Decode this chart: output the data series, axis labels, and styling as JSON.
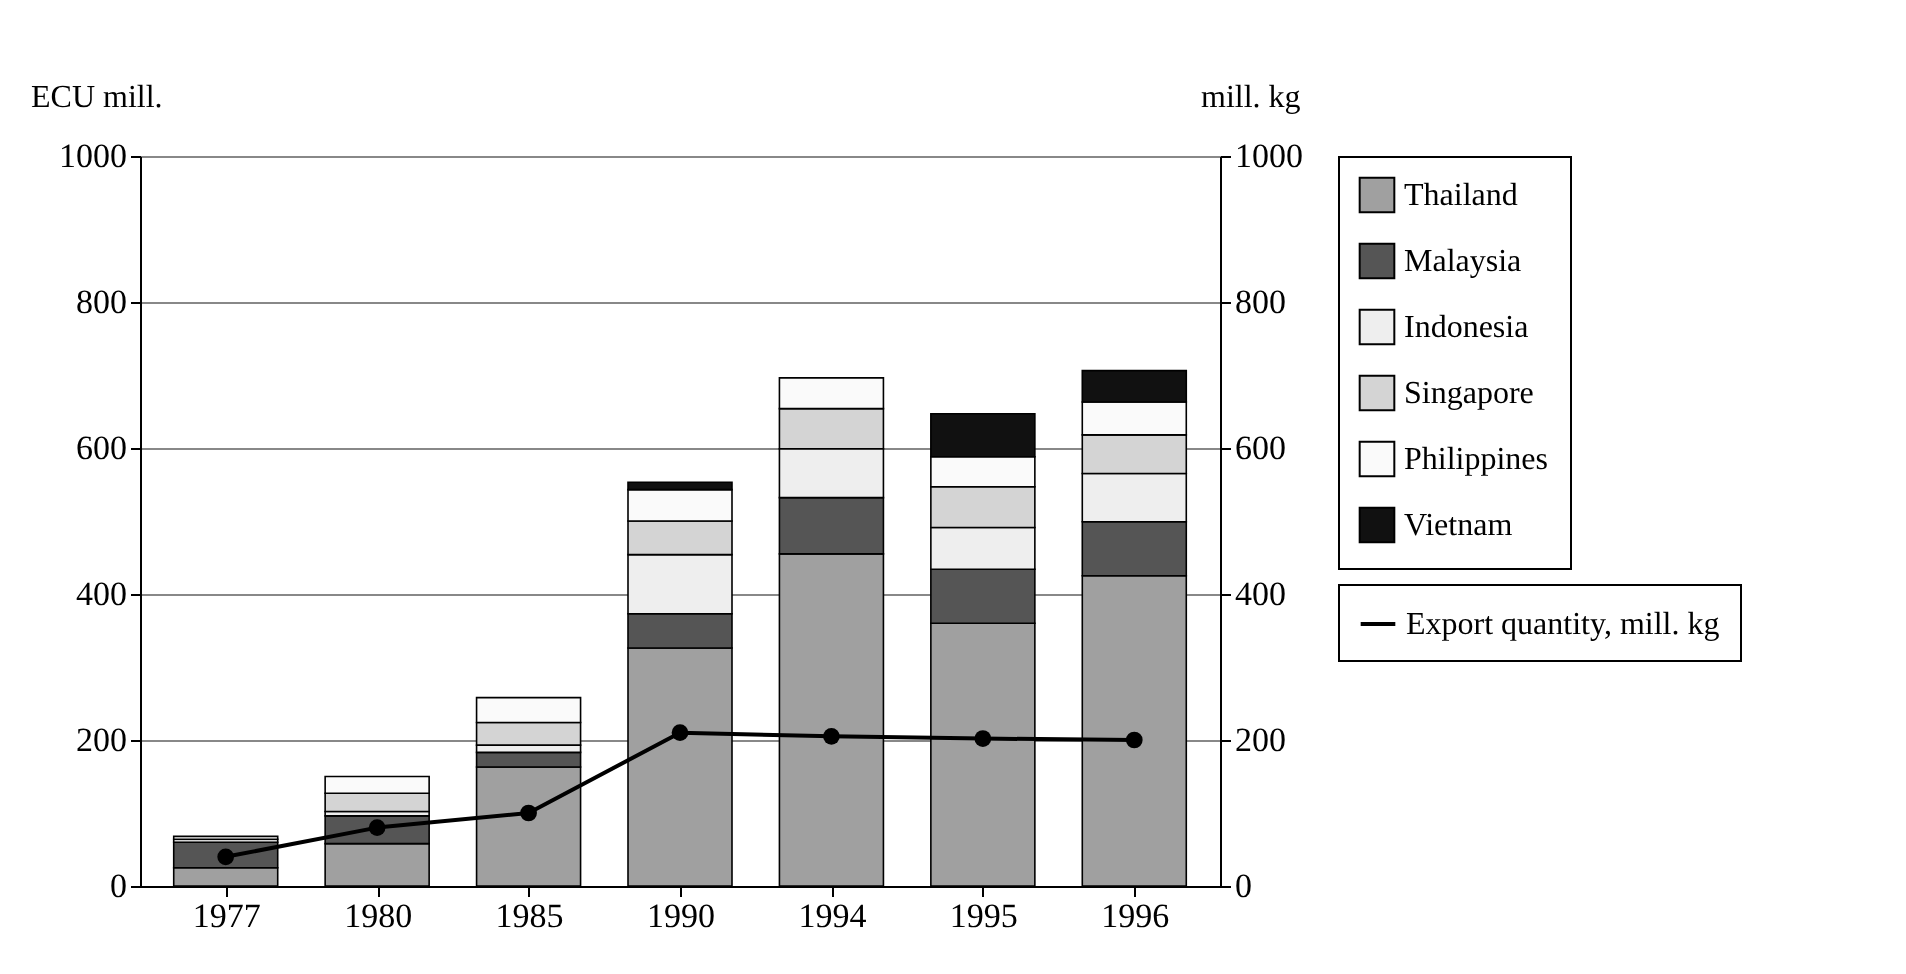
{
  "chart_data": {
    "type": "bar",
    "stacked": true,
    "categories": [
      "1977",
      "1980",
      "1985",
      "1990",
      "1994",
      "1995",
      "1996"
    ],
    "ylabel": "ECU mill.",
    "y2label": "mill. kg",
    "ylim": [
      0,
      1000
    ],
    "yticks": [
      0,
      200,
      400,
      600,
      800,
      1000
    ],
    "y2lim": [
      0,
      1000
    ],
    "y2ticks": [
      0,
      200,
      400,
      600,
      800,
      1000
    ],
    "grid": "y",
    "legend": "right",
    "series": [
      {
        "name": "Thailand",
        "color": "#a0a0a0",
        "values": [
          25,
          58,
          163,
          326,
          455,
          360,
          425
        ]
      },
      {
        "name": "Malaysia",
        "color": "#555555",
        "values": [
          35,
          38,
          20,
          47,
          77,
          74,
          74
        ]
      },
      {
        "name": "Indonesia",
        "color": "#eeeeee",
        "values": [
          null,
          6,
          10,
          81,
          67,
          57,
          66
        ]
      },
      {
        "name": "Singapore",
        "color": "#d4d4d4",
        "values": [
          4,
          25,
          31,
          46,
          55,
          56,
          53
        ]
      },
      {
        "name": "Philippines",
        "color": "#fafafa",
        "values": [
          4,
          23,
          34,
          43,
          42,
          41,
          45
        ]
      },
      {
        "name": "Vietnam",
        "color": "#111111",
        "values": [
          null,
          null,
          null,
          10,
          null,
          59,
          43
        ]
      },
      {
        "name": "Export quantity, mill. kg",
        "type": "line",
        "axis": "y2",
        "marker": "circle",
        "color": "#000000",
        "values": [
          40,
          80,
          100,
          210,
          205,
          202,
          200
        ]
      }
    ]
  }
}
